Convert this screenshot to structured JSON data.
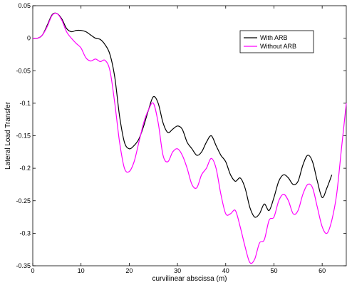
{
  "chart_data": {
    "type": "line",
    "title": "",
    "xlabel": "curvilinear abscissa (m)",
    "ylabel": "Lateral Load Transfer",
    "xlim": [
      0,
      65
    ],
    "ylim": [
      -0.35,
      0.05
    ],
    "xticks": [
      0,
      10,
      20,
      30,
      40,
      50,
      60
    ],
    "yticks": [
      0.05,
      0,
      -0.05,
      -0.1,
      -0.15,
      -0.2,
      -0.25,
      -0.3,
      -0.35
    ],
    "xtick_labels": [
      "0",
      "10",
      "20",
      "30",
      "40",
      "50",
      "60"
    ],
    "ytick_labels": [
      "0.05",
      "0",
      "-0.05",
      "-0.1",
      "-0.15",
      "-0.2",
      "-0.25",
      "-0.3",
      "-0.35"
    ],
    "grid": false,
    "legend_position": "top-right",
    "series": [
      {
        "name": "With ARB",
        "color": "#000000",
        "x": [
          0,
          1,
          2,
          3,
          4,
          5,
          6,
          7,
          8,
          9,
          10,
          11,
          12,
          13,
          14,
          15,
          16,
          17,
          18,
          19,
          20,
          21,
          22,
          23,
          24,
          25,
          26,
          27,
          28,
          29,
          30,
          31,
          32,
          33,
          34,
          35,
          36,
          37,
          38,
          39,
          40,
          41,
          42,
          43,
          44,
          45,
          46,
          47,
          48,
          49,
          50,
          51,
          52,
          53,
          54,
          55,
          56,
          57,
          58,
          59,
          60,
          61,
          62
        ],
        "y": [
          0,
          0,
          0.005,
          0.02,
          0.036,
          0.038,
          0.03,
          0.015,
          0.01,
          0.012,
          0.012,
          0.01,
          0.005,
          0.0,
          -0.002,
          -0.01,
          -0.025,
          -0.06,
          -0.12,
          -0.16,
          -0.17,
          -0.165,
          -0.155,
          -0.135,
          -0.11,
          -0.09,
          -0.1,
          -0.13,
          -0.145,
          -0.14,
          -0.135,
          -0.14,
          -0.16,
          -0.17,
          -0.18,
          -0.175,
          -0.16,
          -0.15,
          -0.165,
          -0.18,
          -0.19,
          -0.21,
          -0.22,
          -0.215,
          -0.23,
          -0.26,
          -0.275,
          -0.27,
          -0.255,
          -0.265,
          -0.245,
          -0.22,
          -0.21,
          -0.215,
          -0.225,
          -0.22,
          -0.195,
          -0.18,
          -0.19,
          -0.22,
          -0.245,
          -0.23,
          -0.21
        ]
      },
      {
        "name": "Without ARB",
        "color": "#ff00ff",
        "x": [
          0,
          1,
          2,
          3,
          4,
          5,
          6,
          7,
          8,
          9,
          10,
          11,
          12,
          13,
          14,
          15,
          16,
          17,
          18,
          19,
          20,
          21,
          22,
          23,
          24,
          25,
          26,
          27,
          28,
          29,
          30,
          31,
          32,
          33,
          34,
          35,
          36,
          37,
          38,
          39,
          40,
          41,
          42,
          43,
          44,
          45,
          46,
          47,
          48,
          49,
          50,
          51,
          52,
          53,
          54,
          55,
          56,
          57,
          58,
          59,
          60,
          61,
          62,
          63,
          64,
          65
        ],
        "y": [
          0,
          0,
          0.005,
          0.018,
          0.035,
          0.038,
          0.028,
          0.01,
          0.0,
          -0.008,
          -0.015,
          -0.03,
          -0.035,
          -0.032,
          -0.036,
          -0.034,
          -0.05,
          -0.1,
          -0.16,
          -0.2,
          -0.205,
          -0.19,
          -0.16,
          -0.13,
          -0.11,
          -0.1,
          -0.13,
          -0.18,
          -0.19,
          -0.175,
          -0.17,
          -0.18,
          -0.2,
          -0.225,
          -0.23,
          -0.21,
          -0.2,
          -0.185,
          -0.2,
          -0.24,
          -0.27,
          -0.27,
          -0.265,
          -0.29,
          -0.32,
          -0.345,
          -0.34,
          -0.315,
          -0.31,
          -0.28,
          -0.275,
          -0.25,
          -0.24,
          -0.25,
          -0.27,
          -0.265,
          -0.24,
          -0.225,
          -0.23,
          -0.26,
          -0.29,
          -0.3,
          -0.28,
          -0.24,
          -0.17,
          -0.1
        ]
      }
    ]
  }
}
